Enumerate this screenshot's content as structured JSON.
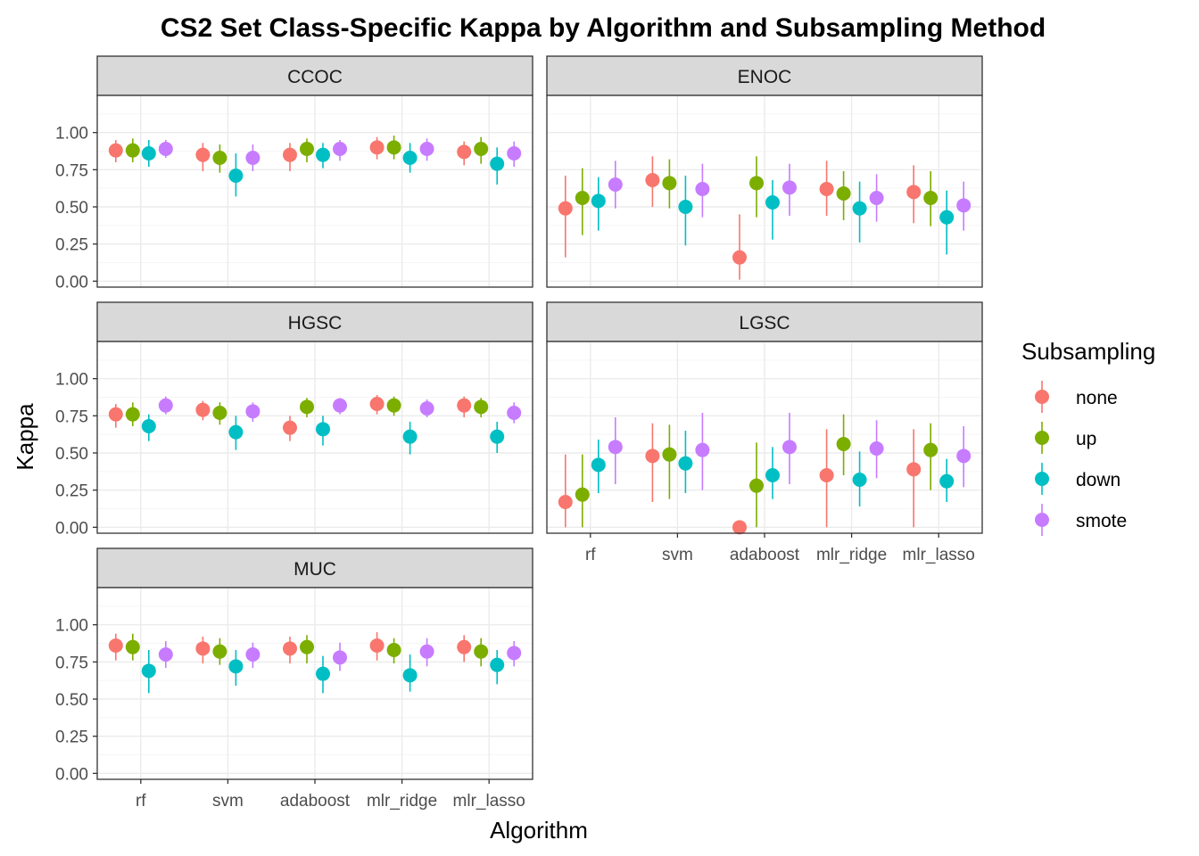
{
  "chart_data": {
    "type": "scatter",
    "title": "CS2 Set Class-Specific Kappa by Algorithm and Subsampling Method",
    "xlabel": "Algorithm",
    "ylabel": "Kappa",
    "categories": [
      "rf",
      "svm",
      "adaboost",
      "mlr_ridge",
      "mlr_lasso"
    ],
    "ylim": [
      -0.04,
      1.25
    ],
    "yticks": [
      "0.00",
      "0.25",
      "0.50",
      "0.75",
      "1.00"
    ],
    "grid": true,
    "legend": {
      "title": "Subsampling",
      "position": "right",
      "entries": [
        "none",
        "up",
        "down",
        "smote"
      ]
    },
    "colors": {
      "none": "#F8766D",
      "up": "#7CAE00",
      "down": "#00BFC4",
      "smote": "#C77CFF",
      "strip_bg": "#D9D9D9",
      "grid_major": "#EBEBEB",
      "grid_minor": "#F5F5F5"
    },
    "panels": [
      {
        "name": "CCOC",
        "series": [
          {
            "name": "none",
            "values": [
              0.88,
              0.85,
              0.85,
              0.9,
              0.87
            ],
            "lower": [
              0.8,
              0.74,
              0.74,
              0.82,
              0.78
            ],
            "upper": [
              0.95,
              0.93,
              0.93,
              0.97,
              0.94
            ]
          },
          {
            "name": "up",
            "values": [
              0.88,
              0.83,
              0.89,
              0.9,
              0.89
            ],
            "lower": [
              0.8,
              0.73,
              0.8,
              0.82,
              0.79
            ],
            "upper": [
              0.96,
              0.92,
              0.96,
              0.98,
              0.97
            ]
          },
          {
            "name": "down",
            "values": [
              0.86,
              0.71,
              0.85,
              0.83,
              0.79
            ],
            "lower": [
              0.77,
              0.57,
              0.76,
              0.73,
              0.65
            ],
            "upper": [
              0.95,
              0.86,
              0.93,
              0.93,
              0.9
            ]
          },
          {
            "name": "smote",
            "values": [
              0.89,
              0.83,
              0.89,
              0.89,
              0.86
            ],
            "lower": [
              0.83,
              0.74,
              0.81,
              0.81,
              0.77
            ],
            "upper": [
              0.95,
              0.92,
              0.95,
              0.96,
              0.94
            ]
          }
        ]
      },
      {
        "name": "ENOC",
        "series": [
          {
            "name": "none",
            "values": [
              0.49,
              0.68,
              0.16,
              0.62,
              0.6
            ],
            "lower": [
              0.16,
              0.5,
              0.01,
              0.44,
              0.39
            ],
            "upper": [
              0.71,
              0.84,
              0.45,
              0.81,
              0.78
            ]
          },
          {
            "name": "up",
            "values": [
              0.56,
              0.66,
              0.66,
              0.59,
              0.56
            ],
            "lower": [
              0.31,
              0.49,
              0.43,
              0.41,
              0.37
            ],
            "upper": [
              0.76,
              0.82,
              0.84,
              0.74,
              0.74
            ]
          },
          {
            "name": "down",
            "values": [
              0.54,
              0.5,
              0.53,
              0.49,
              0.43
            ],
            "lower": [
              0.34,
              0.24,
              0.28,
              0.26,
              0.18
            ],
            "upper": [
              0.7,
              0.71,
              0.68,
              0.67,
              0.61
            ]
          },
          {
            "name": "smote",
            "values": [
              0.65,
              0.62,
              0.63,
              0.56,
              0.51
            ],
            "lower": [
              0.49,
              0.43,
              0.44,
              0.4,
              0.34
            ],
            "upper": [
              0.81,
              0.79,
              0.79,
              0.72,
              0.67
            ]
          }
        ]
      },
      {
        "name": "HGSC",
        "series": [
          {
            "name": "none",
            "values": [
              0.76,
              0.79,
              0.67,
              0.83,
              0.82
            ],
            "lower": [
              0.67,
              0.72,
              0.58,
              0.76,
              0.74
            ],
            "upper": [
              0.83,
              0.85,
              0.75,
              0.89,
              0.88
            ]
          },
          {
            "name": "up",
            "values": [
              0.76,
              0.77,
              0.81,
              0.82,
              0.81
            ],
            "lower": [
              0.68,
              0.69,
              0.74,
              0.75,
              0.74
            ],
            "upper": [
              0.84,
              0.84,
              0.87,
              0.88,
              0.87
            ]
          },
          {
            "name": "down",
            "values": [
              0.68,
              0.64,
              0.66,
              0.61,
              0.61
            ],
            "lower": [
              0.58,
              0.52,
              0.55,
              0.49,
              0.5
            ],
            "upper": [
              0.76,
              0.75,
              0.75,
              0.71,
              0.71
            ]
          },
          {
            "name": "smote",
            "values": [
              0.82,
              0.78,
              0.82,
              0.8,
              0.77
            ],
            "lower": [
              0.76,
              0.71,
              0.76,
              0.74,
              0.7
            ],
            "upper": [
              0.88,
              0.84,
              0.87,
              0.86,
              0.84
            ]
          }
        ]
      },
      {
        "name": "LGSC",
        "series": [
          {
            "name": "none",
            "values": [
              0.17,
              0.48,
              0.0,
              0.35,
              0.39
            ],
            "lower": [
              0.0,
              0.17,
              0.0,
              0.0,
              0.0
            ],
            "upper": [
              0.49,
              0.7,
              0.0,
              0.66,
              0.66
            ]
          },
          {
            "name": "up",
            "values": [
              0.22,
              0.49,
              0.28,
              0.56,
              0.52
            ],
            "lower": [
              0.0,
              0.19,
              0.0,
              0.35,
              0.25
            ],
            "upper": [
              0.49,
              0.69,
              0.57,
              0.76,
              0.7
            ]
          },
          {
            "name": "down",
            "values": [
              0.42,
              0.43,
              0.35,
              0.32,
              0.31
            ],
            "lower": [
              0.23,
              0.23,
              0.19,
              0.14,
              0.17
            ],
            "upper": [
              0.59,
              0.65,
              0.54,
              0.51,
              0.46
            ]
          },
          {
            "name": "smote",
            "values": [
              0.54,
              0.52,
              0.54,
              0.53,
              0.48
            ],
            "lower": [
              0.29,
              0.25,
              0.29,
              0.33,
              0.27
            ],
            "upper": [
              0.74,
              0.77,
              0.77,
              0.72,
              0.68
            ]
          }
        ]
      },
      {
        "name": "MUC",
        "series": [
          {
            "name": "none",
            "values": [
              0.86,
              0.84,
              0.84,
              0.86,
              0.85
            ],
            "lower": [
              0.76,
              0.74,
              0.74,
              0.76,
              0.75
            ],
            "upper": [
              0.94,
              0.92,
              0.92,
              0.95,
              0.93
            ]
          },
          {
            "name": "up",
            "values": [
              0.85,
              0.82,
              0.85,
              0.83,
              0.82
            ],
            "lower": [
              0.76,
              0.73,
              0.74,
              0.74,
              0.72
            ],
            "upper": [
              0.94,
              0.91,
              0.93,
              0.91,
              0.91
            ]
          },
          {
            "name": "down",
            "values": [
              0.69,
              0.72,
              0.67,
              0.66,
              0.73
            ],
            "lower": [
              0.54,
              0.59,
              0.54,
              0.55,
              0.6
            ],
            "upper": [
              0.83,
              0.83,
              0.79,
              0.8,
              0.83
            ]
          },
          {
            "name": "smote",
            "values": [
              0.8,
              0.8,
              0.78,
              0.82,
              0.81
            ],
            "lower": [
              0.71,
              0.71,
              0.69,
              0.72,
              0.72
            ],
            "upper": [
              0.89,
              0.88,
              0.88,
              0.91,
              0.89
            ]
          }
        ]
      }
    ]
  }
}
